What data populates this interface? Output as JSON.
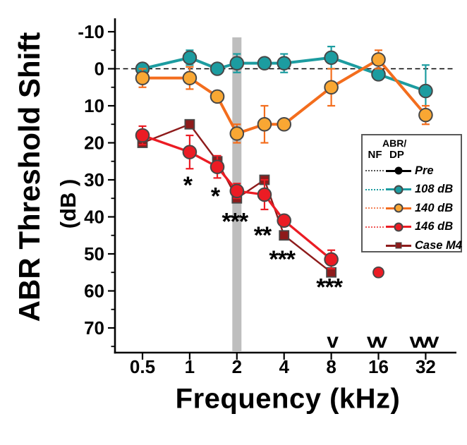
{
  "labels": {
    "y_title": "ABR Threshold Shift",
    "y_unit": "(dB )",
    "x_title": "Frequency (kHz)"
  },
  "chart_data": {
    "type": "line",
    "title": "",
    "xlabel": "Frequency (kHz)",
    "ylabel": "ABR Threshold Shift (dB)",
    "x_scale": "log2",
    "y_axis_inverted": true,
    "ylim": [
      -13.5,
      76.5
    ],
    "x_ticks_khz": [
      0.5,
      1,
      2,
      4,
      8,
      16,
      32
    ],
    "x_tick_labels": [
      "0.5",
      "1",
      "2",
      "4",
      "8",
      "16",
      "32"
    ],
    "y_ticks_db": [
      -10,
      0,
      10,
      20,
      30,
      40,
      50,
      60,
      70
    ],
    "y_minor_ticks_db": [
      -5,
      5,
      15,
      25,
      35,
      45,
      55,
      65,
      75
    ],
    "zero_reference_line_db": 0,
    "highlight_band": {
      "center_khz": 2,
      "color": "#BEBEBE"
    },
    "series": [
      {
        "name": "108 dB",
        "marker": "circle",
        "line_color": "#1C9CA0",
        "marker_fill": "#1C9CA0",
        "marker_edge": "#474747",
        "x_khz": [
          0.5,
          1,
          1.5,
          2,
          3,
          4,
          8,
          16,
          32
        ],
        "y_db": [
          0,
          -3,
          0,
          -1.5,
          -1.5,
          -1.5,
          -3,
          1.5,
          6
        ],
        "err_db": [
          1.5,
          2,
          1,
          2.5,
          1.5,
          2.5,
          3,
          1.5,
          7
        ]
      },
      {
        "name": "140 dB",
        "marker": "circle",
        "line_color": "#F36D1D",
        "marker_fill": "#F9A733",
        "marker_edge": "#474747",
        "x_khz": [
          0.5,
          1,
          1.5,
          2,
          3,
          4,
          8,
          16,
          32
        ],
        "y_db": [
          2.5,
          2.5,
          7.5,
          17.5,
          15,
          15,
          5,
          -2.5,
          12.5
        ],
        "err_db": [
          2.5,
          3,
          1.5,
          2.5,
          5,
          1,
          5,
          2.5,
          2.5
        ]
      },
      {
        "name": "Case M4",
        "marker": "square",
        "line_color": "#8E1B1B",
        "marker_fill": "#8E1B1B",
        "marker_edge": "#474747",
        "x_khz": [
          0.5,
          1,
          1.5,
          2,
          3,
          4,
          8
        ],
        "y_db": [
          20,
          15,
          25,
          35,
          30,
          45,
          55
        ],
        "err_db": []
      },
      {
        "name": "146 dB",
        "marker": "circle",
        "line_color": "#EB1C24",
        "marker_fill": "#EB1C24",
        "marker_edge": "#474747",
        "x_khz": [
          0.5,
          1,
          1.5,
          2,
          3,
          4,
          8
        ],
        "y_db": [
          18,
          22.5,
          26.5,
          33,
          34,
          41,
          51.5
        ],
        "err_db": [
          2.5,
          4.5,
          3,
          2,
          4,
          1.5,
          2.5
        ]
      }
    ],
    "isolated_points": [
      {
        "series": "146 dB",
        "x_khz": 16,
        "y_db": 55,
        "fill": "#EB1C24",
        "edge": "#474747"
      }
    ],
    "significance_marks": [
      {
        "x_khz": 1,
        "y_db": 31.5,
        "text": "*"
      },
      {
        "x_khz": 1.5,
        "y_db": 34.5,
        "text": "*"
      },
      {
        "x_khz": 2,
        "y_db": 41.3,
        "text": "***"
      },
      {
        "x_khz": 3,
        "y_db": 45,
        "text": "**"
      },
      {
        "x_khz": 4,
        "y_db": 51.5,
        "text": "***"
      },
      {
        "x_khz": 8,
        "y_db": 59,
        "text": "***"
      }
    ],
    "notch_marks": [
      {
        "x_khz": 8,
        "text": "v"
      },
      {
        "x_khz": 16,
        "text": "vv"
      },
      {
        "x_khz": 32,
        "text": "vvv"
      }
    ],
    "annotation_color": "#EB1C24"
  },
  "legend": {
    "header": "ABR/",
    "col_nf": "NF",
    "col_dp": "DP",
    "rows": [
      {
        "label": "Pre",
        "line_color": "#000000",
        "marker_fill": "#000000",
        "marker": "circle",
        "has_nf": true,
        "nf_color": "#555555"
      },
      {
        "label": "108 dB",
        "line_color": "#1C9CA0",
        "marker_fill": "#1C9CA0",
        "marker": "circle",
        "has_nf": true,
        "nf_color": "#1C9CA0"
      },
      {
        "label": "140 dB",
        "line_color": "#F36D1D",
        "marker_fill": "#F9A733",
        "marker": "circle",
        "has_nf": true,
        "nf_color": "#F4845A"
      },
      {
        "label": "146 dB",
        "line_color": "#EB1C24",
        "marker_fill": "#EB1C24",
        "marker": "circle",
        "has_nf": true,
        "nf_color": "#F05A5A"
      },
      {
        "label": "Case M4",
        "line_color": "#8E1B1B",
        "marker_fill": "#8E1B1B",
        "marker": "square",
        "has_nf": false,
        "nf_color": "#8E1B1B"
      }
    ]
  }
}
